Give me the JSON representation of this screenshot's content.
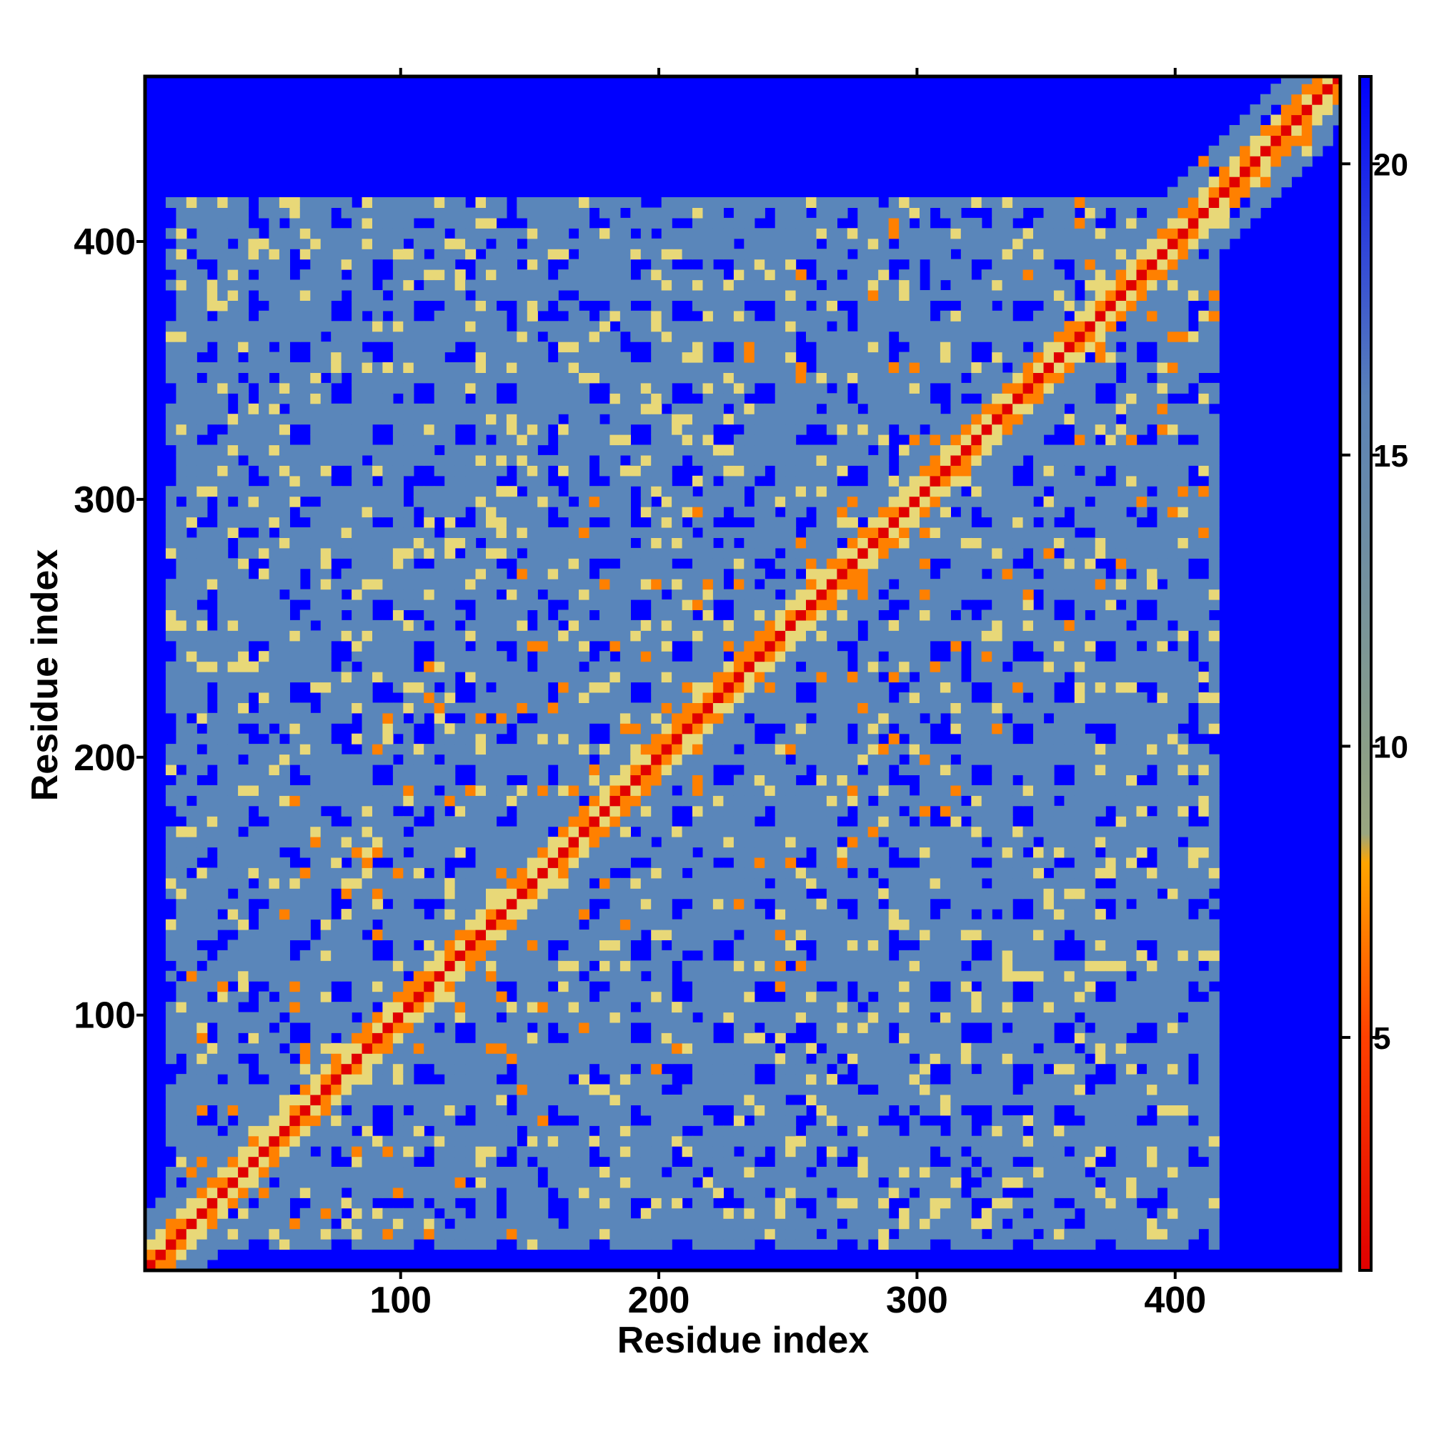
{
  "chart_data": {
    "type": "heatmap",
    "title": "",
    "xlabel": "Residue index",
    "ylabel": "Residue index",
    "xlim": [
      1,
      464
    ],
    "ylim": [
      1,
      464
    ],
    "x_ticks": [
      100,
      200,
      300,
      400
    ],
    "x_tick_labels": [
      "100",
      "200",
      "300",
      "400"
    ],
    "y_ticks": [
      100,
      200,
      300,
      400
    ],
    "y_tick_labels": [
      "100",
      "200",
      "300",
      "400"
    ],
    "colorbar": {
      "range": [
        1,
        21.5
      ],
      "ticks": [
        5,
        10,
        15,
        20
      ],
      "tick_labels": [
        "5",
        "10",
        "15",
        "20"
      ],
      "stops": [
        {
          "value": 1,
          "color": "#e00000"
        },
        {
          "value": 5,
          "color": "#ff4000"
        },
        {
          "value": 8,
          "color": "#ffa500"
        },
        {
          "value": 8.5,
          "color": "#9aa680"
        },
        {
          "value": 10,
          "color": "#8a9e88"
        },
        {
          "value": 16,
          "color": "#5a82b8"
        },
        {
          "value": 21.5,
          "color": "#0000ff"
        }
      ]
    },
    "grid": false,
    "colors": {
      "near": "#e00000",
      "contact": "#ff8000",
      "mid": "#e8d878",
      "far": "#5a86ba",
      "background": "#0000ff"
    }
  }
}
